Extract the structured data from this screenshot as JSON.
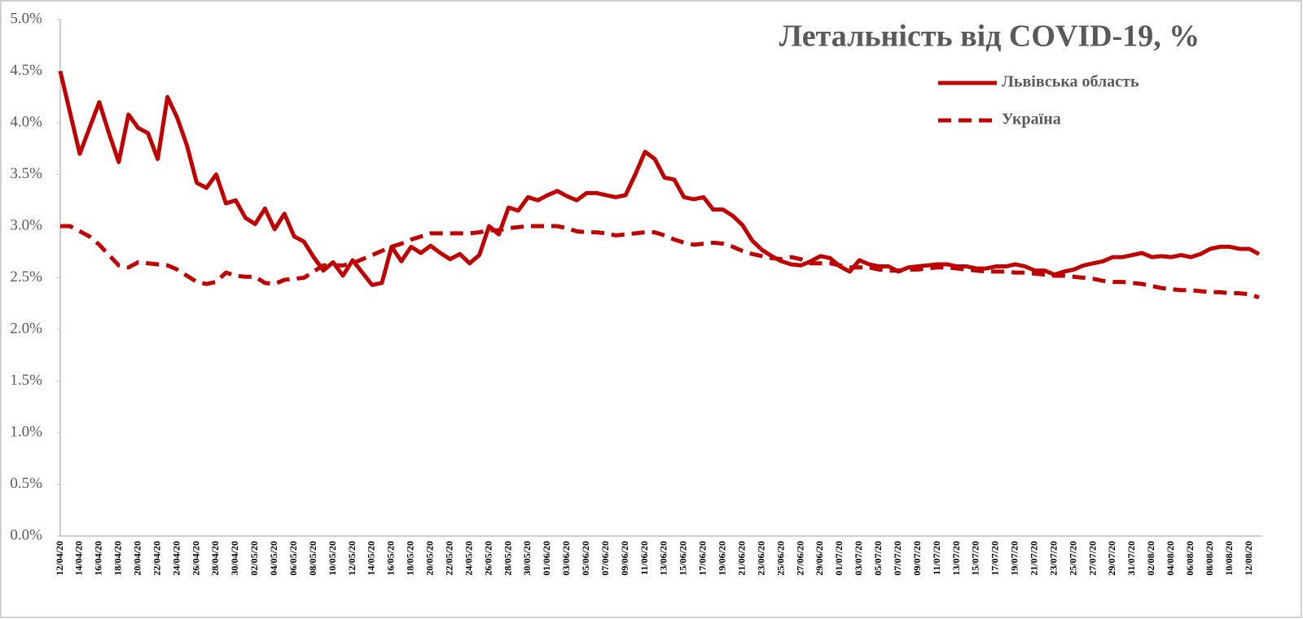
{
  "chart_data": {
    "type": "line",
    "title": "Летальність від COVID-19, %",
    "categories": [
      "12/04/20",
      null,
      "14/04/20",
      null,
      "16/04/20",
      null,
      "18/04/20",
      null,
      "20/04/20",
      null,
      "22/04/20",
      null,
      "24/04/20",
      null,
      "26/04/20",
      null,
      "28/04/20",
      null,
      "30/04/20",
      null,
      "02/05/20",
      null,
      "04/05/20",
      null,
      "06/05/20",
      null,
      "08/05/20",
      null,
      "10/05/20",
      null,
      "12/05/20",
      null,
      "14/05/20",
      null,
      "16/05/20",
      null,
      "18/05/20",
      null,
      "20/05/20",
      null,
      "22/05/20",
      null,
      "24/05/20",
      null,
      "26/05/20",
      null,
      "28/05/20",
      null,
      "30/05/20",
      null,
      "01/06/20",
      null,
      "03/06/20",
      null,
      "05/06/20",
      null,
      "07/06/20",
      null,
      "09/06/20",
      null,
      "11/06/20",
      null,
      "13/06/20",
      null,
      "15/06/20",
      null,
      "17/06/20",
      null,
      "19/06/20",
      null,
      "21/06/20",
      null,
      "23/06/20",
      null,
      "25/06/20",
      null,
      "27/06/20",
      null,
      "29/06/20",
      null,
      "01/07/20",
      null,
      "03/07/20",
      null,
      "05/07/20",
      null,
      "07/07/20",
      null,
      "09/07/20",
      null,
      "11/07/20",
      null,
      "13/07/20",
      null,
      "15/07/20",
      null,
      "17/07/20",
      null,
      "19/07/20",
      null,
      "21/07/20",
      null,
      "23/07/20",
      null,
      "25/07/20",
      null,
      "27/07/20",
      null,
      "29/07/20",
      null,
      "31/07/20",
      null,
      "02/08/20",
      null,
      "04/08/20",
      null,
      "06/08/20",
      null,
      "08/08/20",
      null,
      "10/08/20",
      null,
      "12/08/20",
      null
    ],
    "series": [
      {
        "name": "Львівська область",
        "color": "#c00000",
        "line_style": "solid",
        "values": [
          4.5,
          4.1,
          3.7,
          3.95,
          4.2,
          3.9,
          3.62,
          4.08,
          3.95,
          3.9,
          3.65,
          4.25,
          4.05,
          3.78,
          3.42,
          3.37,
          3.5,
          3.22,
          3.25,
          3.08,
          3.02,
          3.17,
          2.97,
          3.12,
          2.9,
          2.85,
          2.7,
          2.57,
          2.65,
          2.52,
          2.67,
          2.55,
          2.43,
          2.45,
          2.8,
          2.66,
          2.8,
          2.74,
          2.81,
          2.74,
          2.68,
          2.73,
          2.64,
          2.72,
          3.0,
          2.92,
          3.18,
          3.15,
          3.28,
          3.25,
          3.3,
          3.34,
          3.29,
          3.25,
          3.32,
          3.32,
          3.3,
          3.28,
          3.3,
          3.5,
          3.72,
          3.65,
          3.47,
          3.45,
          3.28,
          3.26,
          3.28,
          3.16,
          3.16,
          3.1,
          3.01,
          2.86,
          2.77,
          2.71,
          2.66,
          2.63,
          2.62,
          2.66,
          2.71,
          2.69,
          2.61,
          2.56,
          2.67,
          2.63,
          2.61,
          2.61,
          2.56,
          2.6,
          2.61,
          2.62,
          2.63,
          2.63,
          2.61,
          2.61,
          2.59,
          2.59,
          2.61,
          2.61,
          2.63,
          2.61,
          2.57,
          2.57,
          2.53,
          2.56,
          2.58,
          2.62,
          2.64,
          2.66,
          2.7,
          2.7,
          2.72,
          2.74,
          2.7,
          2.71,
          2.7,
          2.72,
          2.7,
          2.73,
          2.78,
          2.8,
          2.8,
          2.78,
          2.78,
          2.73
        ]
      },
      {
        "name": "Україна",
        "color": "#c00000",
        "line_style": "dashed",
        "values": [
          3.0,
          3.0,
          2.95,
          2.9,
          2.82,
          2.72,
          2.62,
          2.6,
          2.65,
          2.64,
          2.63,
          2.62,
          2.58,
          2.52,
          2.46,
          2.44,
          2.46,
          2.55,
          2.52,
          2.51,
          2.51,
          2.45,
          2.44,
          2.48,
          2.49,
          2.5,
          2.56,
          2.62,
          2.62,
          2.62,
          2.64,
          2.68,
          2.72,
          2.76,
          2.8,
          2.83,
          2.87,
          2.9,
          2.93,
          2.93,
          2.93,
          2.93,
          2.93,
          2.94,
          2.96,
          2.96,
          2.98,
          2.99,
          3.0,
          3.0,
          3.0,
          3.0,
          2.98,
          2.95,
          2.94,
          2.94,
          2.93,
          2.91,
          2.92,
          2.93,
          2.94,
          2.94,
          2.91,
          2.87,
          2.84,
          2.82,
          2.83,
          2.84,
          2.83,
          2.8,
          2.76,
          2.73,
          2.71,
          2.69,
          2.68,
          2.7,
          2.68,
          2.64,
          2.64,
          2.64,
          2.62,
          2.6,
          2.6,
          2.6,
          2.58,
          2.57,
          2.57,
          2.58,
          2.58,
          2.59,
          2.6,
          2.6,
          2.59,
          2.58,
          2.57,
          2.56,
          2.56,
          2.56,
          2.55,
          2.55,
          2.54,
          2.53,
          2.52,
          2.52,
          2.51,
          2.5,
          2.49,
          2.47,
          2.46,
          2.46,
          2.45,
          2.44,
          2.42,
          2.4,
          2.39,
          2.38,
          2.38,
          2.37,
          2.36,
          2.36,
          2.35,
          2.35,
          2.34,
          2.31
        ]
      }
    ],
    "ylim": [
      0,
      5
    ],
    "yticks": [
      {
        "value": 0,
        "label": "0.0%"
      },
      {
        "value": 0.5,
        "label": "0.5%"
      },
      {
        "value": 1,
        "label": "1.0%"
      },
      {
        "value": 1.5,
        "label": "1.5%"
      },
      {
        "value": 2,
        "label": "2.0%"
      },
      {
        "value": 2.5,
        "label": "2.5%"
      },
      {
        "value": 3,
        "label": "3.0%"
      },
      {
        "value": 3.5,
        "label": "3.5%"
      },
      {
        "value": 4,
        "label": "4.0%"
      },
      {
        "value": 4.5,
        "label": "4.5%"
      },
      {
        "value": 5,
        "label": "5.0%"
      }
    ],
    "grid": false,
    "legend": "top-right"
  }
}
